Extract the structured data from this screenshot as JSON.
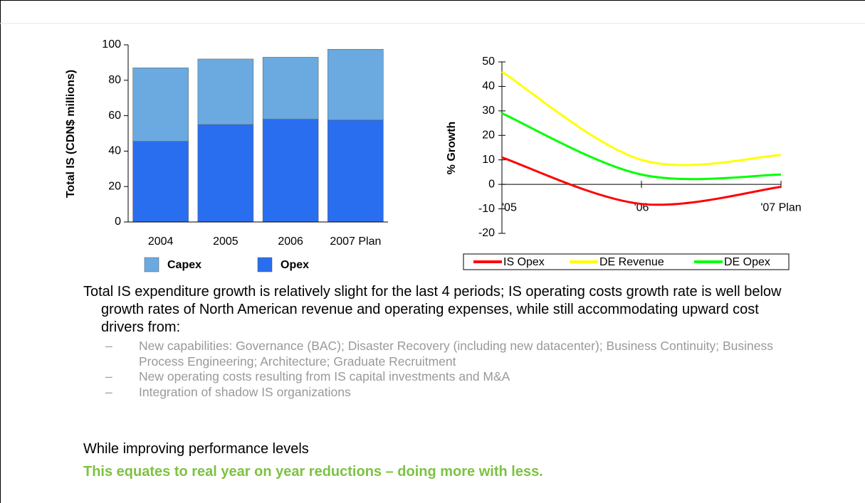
{
  "chart_data": [
    {
      "type": "stacked-bar",
      "ylabel": "Total IS (CDN$ millions)",
      "categories": [
        "2004",
        "2005",
        "2006",
        "2007 Plan"
      ],
      "series": [
        {
          "name": "Opex",
          "color": "#2a6ef0",
          "values": [
            45.5,
            55,
            58,
            57.5
          ]
        },
        {
          "name": "Capex",
          "color": "#6aaae0",
          "values": [
            41.5,
            37,
            35,
            40
          ]
        }
      ],
      "ylim": [
        0,
        100
      ],
      "yticks": [
        0,
        20,
        40,
        60,
        80,
        100
      ]
    },
    {
      "type": "line",
      "ylabel": "% Growth",
      "categories": [
        "'05",
        "'06",
        "'07 Plan"
      ],
      "series": [
        {
          "name": "IS Opex",
          "color": "#ff0000",
          "values": [
            11,
            -8,
            -1
          ]
        },
        {
          "name": "DE Revenue",
          "color": "#ffff00",
          "values": [
            46,
            10,
            12
          ]
        },
        {
          "name": "DE Opex",
          "color": "#00ff00",
          "values": [
            29,
            4,
            4
          ]
        }
      ],
      "ylim": [
        -20,
        50
      ],
      "yticks": [
        -20,
        -10,
        0,
        10,
        20,
        30,
        40,
        50
      ],
      "smooth": true
    }
  ],
  "text": {
    "paragraph": "Total IS expenditure growth is relatively slight for the last 4 periods; IS operating costs growth rate is well below growth rates of North American revenue and operating expenses, while still accommodating upward cost drivers from:",
    "bullets": [
      "New capabilities: Governance (BAC); Disaster Recovery (including new datacenter); Business Continuity; Business Process Engineering; Architecture; Graduate Recruitment",
      "New operating costs resulting from IS capital investments and M&A",
      "Integration of shadow IS organizations"
    ],
    "bullet_marker": "–",
    "statement": "While improving performance levels",
    "highlight": "This equates to real year on year reductions – doing more with less."
  }
}
